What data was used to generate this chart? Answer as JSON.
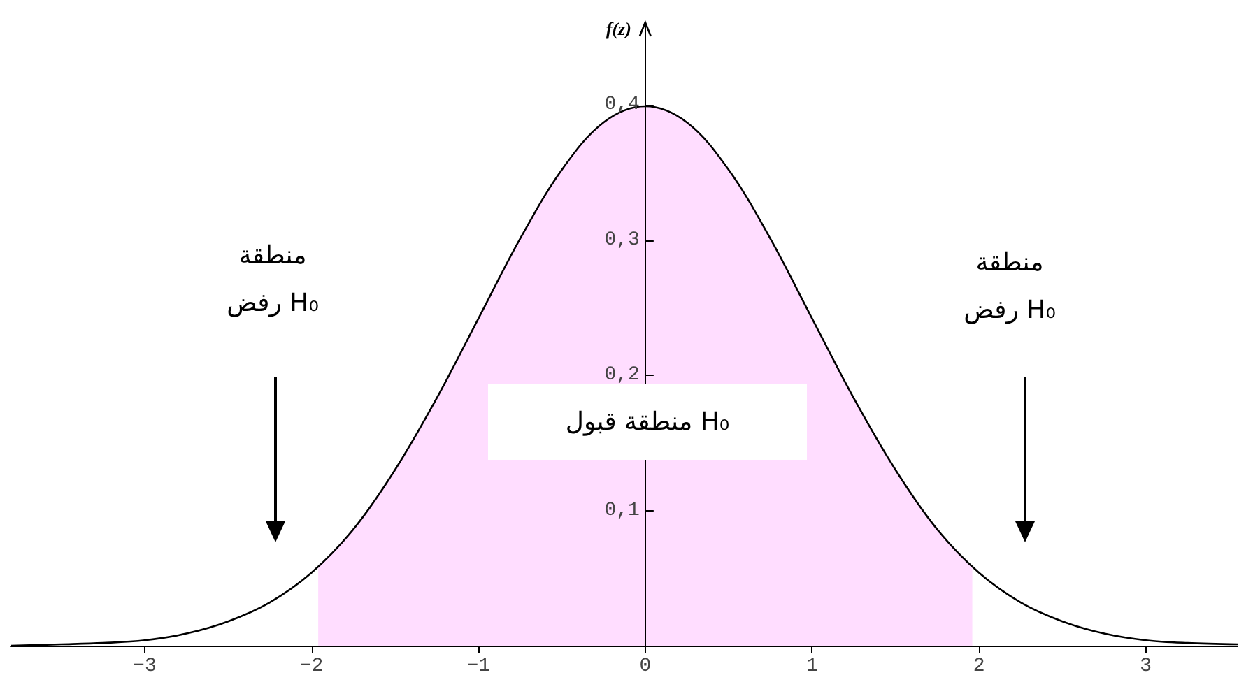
{
  "chart_data": {
    "type": "line",
    "ylabel": "f(z)",
    "xlim": [
      -3.8,
      3.55
    ],
    "ylim": [
      0,
      0.46
    ],
    "xticks": [
      {
        "value": -3,
        "label": "−3"
      },
      {
        "value": -2,
        "label": "−2"
      },
      {
        "value": -1,
        "label": "−1"
      },
      0,
      1,
      2,
      3
    ],
    "yticks": [
      {
        "value": 0.1,
        "label": "0,1"
      },
      {
        "value": 0.2,
        "label": "0,2"
      },
      {
        "value": 0.3,
        "label": "0,3"
      },
      {
        "value": 0.4,
        "label": "0,4"
      }
    ],
    "grid": false,
    "marker": "none",
    "line_style": "solid",
    "series": [
      {
        "type": "area",
        "color": "#ffddff",
        "x": [
          -1.96,
          -1.75,
          -1.5,
          -1.25,
          -1,
          -0.75,
          -0.5,
          -0.25,
          0,
          0.25,
          0.5,
          0.75,
          1,
          1.25,
          1.5,
          1.75,
          1.96
        ],
        "values": [
          0.058,
          0.086,
          0.13,
          0.183,
          0.242,
          0.301,
          0.352,
          0.387,
          0.399,
          0.387,
          0.352,
          0.301,
          0.242,
          0.183,
          0.13,
          0.086,
          0.058
        ]
      },
      {
        "type": "line",
        "color": "#000000",
        "x": [
          -3.8,
          -3.5,
          -3.25,
          -3,
          -2.75,
          -2.5,
          -2.25,
          -2,
          -1.75,
          -1.5,
          -1.25,
          -1,
          -0.75,
          -0.5,
          -0.25,
          0,
          0.25,
          0.5,
          0.75,
          1,
          1.25,
          1.5,
          1.75,
          2,
          2.25,
          2.5,
          2.75,
          3,
          3.25,
          3.55
        ],
        "values": [
          0.0,
          0.001,
          0.002,
          0.004,
          0.009,
          0.018,
          0.032,
          0.054,
          0.086,
          0.13,
          0.183,
          0.242,
          0.301,
          0.352,
          0.387,
          0.399,
          0.387,
          0.352,
          0.301,
          0.242,
          0.183,
          0.13,
          0.086,
          0.054,
          0.032,
          0.018,
          0.009,
          0.004,
          0.002,
          0.001
        ]
      }
    ],
    "annotations": [
      "منطقة\nرفض H₀",
      "منطقة\nرفض H₀",
      "منطقة قبول H₀"
    ]
  }
}
